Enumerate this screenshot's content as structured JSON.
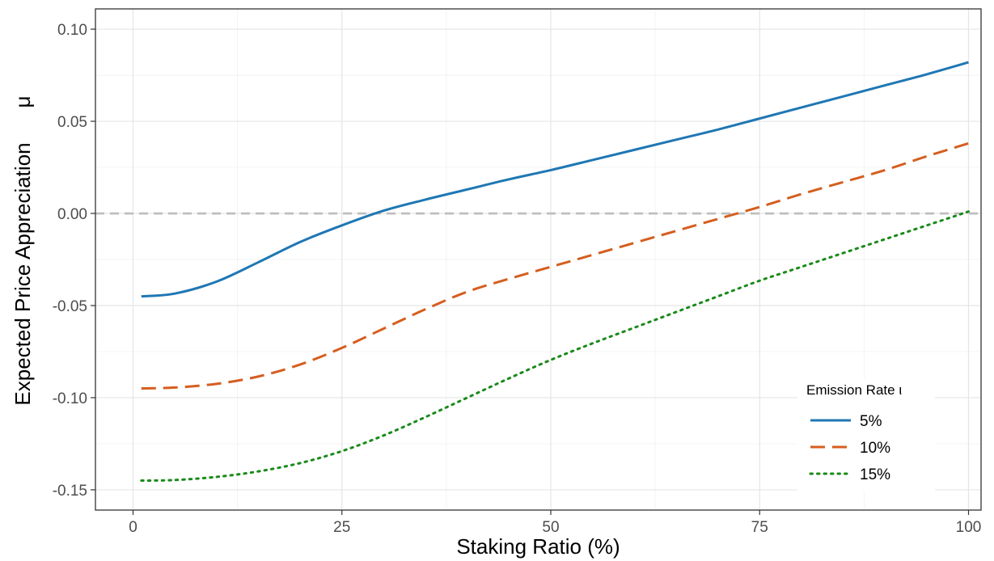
{
  "chart_data": {
    "type": "line",
    "xlabel": "Staking Ratio (%)",
    "ylabel": "Expected Price Appreciation",
    "ylabel_symbol": "μ",
    "xlim": [
      -4.5,
      101.5
    ],
    "ylim": [
      -0.161,
      0.111
    ],
    "xticks": [
      0,
      25,
      50,
      75,
      100
    ],
    "xtick_labels": [
      "0",
      "25",
      "50",
      "75",
      "100"
    ],
    "yticks": [
      0.1,
      0.05,
      0.0,
      -0.05,
      -0.1,
      -0.15
    ],
    "ytick_labels": [
      "0.10",
      "0.05",
      "0.00",
      "-0.05",
      "-0.10",
      "-0.15"
    ],
    "grid": true,
    "reference_line": {
      "y": 0.0,
      "style": "dashed",
      "color": "#bdbdbd"
    },
    "legend": {
      "title": "Emission Rate ι",
      "placement": "bottom-right"
    },
    "x": [
      1,
      5,
      10,
      15,
      20,
      25,
      30,
      35,
      40,
      45,
      50,
      55,
      60,
      65,
      70,
      75,
      80,
      85,
      90,
      95,
      100
    ],
    "series": [
      {
        "name": "5%",
        "color": "#1f77b4",
        "dash": "solid",
        "values": [
          -0.045,
          -0.0435,
          -0.037,
          -0.0265,
          -0.0155,
          -0.0065,
          0.0015,
          0.0075,
          0.013,
          0.0185,
          0.0235,
          0.029,
          0.0345,
          0.04,
          0.0455,
          0.0515,
          0.0575,
          0.0635,
          0.0695,
          0.0755,
          0.082
        ]
      },
      {
        "name": "10%",
        "color": "#d55e1f",
        "dash": "dashed",
        "values": [
          -0.095,
          -0.0945,
          -0.0925,
          -0.0885,
          -0.082,
          -0.073,
          -0.0625,
          -0.052,
          -0.0425,
          -0.0355,
          -0.029,
          -0.0225,
          -0.016,
          -0.0095,
          -0.003,
          0.0035,
          0.0105,
          0.017,
          0.0235,
          0.031,
          0.038
        ]
      },
      {
        "name": "15%",
        "color": "#1a8a1a",
        "dash": "dotted",
        "values": [
          -0.145,
          -0.1447,
          -0.143,
          -0.14,
          -0.1355,
          -0.129,
          -0.1205,
          -0.1105,
          -0.1,
          -0.0895,
          -0.0795,
          -0.0705,
          -0.062,
          -0.0535,
          -0.045,
          -0.0365,
          -0.029,
          -0.0215,
          -0.014,
          -0.0065,
          0.001
        ]
      }
    ]
  }
}
